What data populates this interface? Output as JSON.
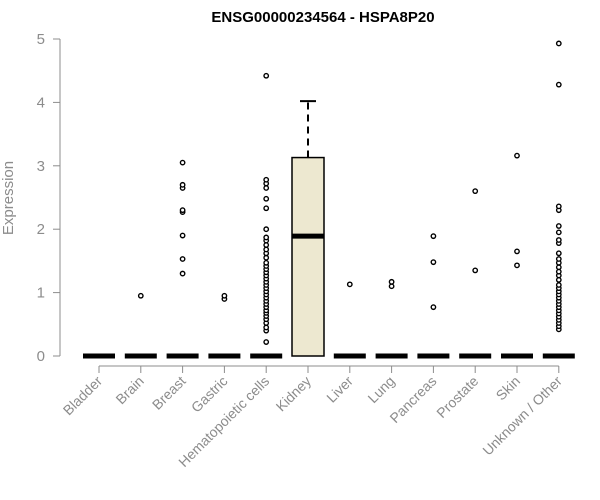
{
  "chart_data": {
    "type": "boxplot",
    "title": "ENSG00000234564 - HSPA8P20",
    "ylabel": "Expression",
    "ylim": [
      0,
      5
    ],
    "yticks": [
      "0",
      "1",
      "2",
      "3",
      "4",
      "5"
    ],
    "categories": [
      "Bladder",
      "Brain",
      "Breast",
      "Gastric",
      "Hematopoietic cells",
      "Kidney",
      "Liver",
      "Lung",
      "Pancreas",
      "Prostate",
      "Skin",
      "Unknown / Other"
    ],
    "box_fill": "#ede8d0",
    "series": [
      {
        "category": "Bladder",
        "q1": 0,
        "median": 0,
        "q3": 0,
        "whisker_low": 0,
        "whisker_high": 0,
        "outliers": []
      },
      {
        "category": "Brain",
        "q1": 0,
        "median": 0,
        "q3": 0,
        "whisker_low": 0,
        "whisker_high": 0,
        "outliers": [
          0.95
        ]
      },
      {
        "category": "Breast",
        "q1": 0,
        "median": 0,
        "q3": 0,
        "whisker_low": 0,
        "whisker_high": 0,
        "outliers": [
          1.3,
          1.53,
          1.9,
          2.27,
          2.3,
          2.65,
          2.7,
          3.05
        ]
      },
      {
        "category": "Gastric",
        "q1": 0,
        "median": 0,
        "q3": 0,
        "whisker_low": 0,
        "whisker_high": 0,
        "outliers": [
          0.9,
          0.95
        ]
      },
      {
        "category": "Hematopoietic cells",
        "q1": 0,
        "median": 0,
        "q3": 0,
        "whisker_low": 0,
        "whisker_high": 0,
        "outliers": [
          0.22,
          0.4,
          0.45,
          0.52,
          0.58,
          0.63,
          0.68,
          0.72,
          0.77,
          0.82,
          0.87,
          0.92,
          0.97,
          1.02,
          1.07,
          1.12,
          1.17,
          1.22,
          1.27,
          1.32,
          1.37,
          1.42,
          1.47,
          1.55,
          1.62,
          1.68,
          1.75,
          1.82,
          1.87,
          2.0,
          2.33,
          2.48,
          2.65,
          2.72,
          2.78,
          4.42
        ]
      },
      {
        "category": "Kidney",
        "q1": 0,
        "median": 1.89,
        "q3": 3.13,
        "whisker_low": 0,
        "whisker_high": 4.02,
        "outliers": []
      },
      {
        "category": "Liver",
        "q1": 0,
        "median": 0,
        "q3": 0,
        "whisker_low": 0,
        "whisker_high": 0,
        "outliers": [
          1.13
        ]
      },
      {
        "category": "Lung",
        "q1": 0,
        "median": 0,
        "q3": 0,
        "whisker_low": 0,
        "whisker_high": 0,
        "outliers": [
          1.1,
          1.17
        ]
      },
      {
        "category": "Pancreas",
        "q1": 0,
        "median": 0,
        "q3": 0,
        "whisker_low": 0,
        "whisker_high": 0,
        "outliers": [
          0.77,
          1.48,
          1.89
        ]
      },
      {
        "category": "Prostate",
        "q1": 0,
        "median": 0,
        "q3": 0,
        "whisker_low": 0,
        "whisker_high": 0,
        "outliers": [
          1.35,
          2.6
        ]
      },
      {
        "category": "Skin",
        "q1": 0,
        "median": 0,
        "q3": 0,
        "whisker_low": 0,
        "whisker_high": 0,
        "outliers": [
          1.43,
          1.65,
          3.16
        ]
      },
      {
        "category": "Unknown / Other",
        "q1": 0,
        "median": 0,
        "q3": 0,
        "whisker_low": 0,
        "whisker_high": 0,
        "outliers": [
          0.42,
          0.47,
          0.52,
          0.57,
          0.62,
          0.67,
          0.72,
          0.77,
          0.82,
          0.87,
          0.92,
          0.97,
          1.02,
          1.07,
          1.12,
          1.2,
          1.27,
          1.33,
          1.4,
          1.47,
          1.53,
          1.62,
          1.78,
          1.83,
          1.95,
          2.05,
          2.3,
          2.36,
          4.28,
          4.93
        ]
      }
    ]
  }
}
